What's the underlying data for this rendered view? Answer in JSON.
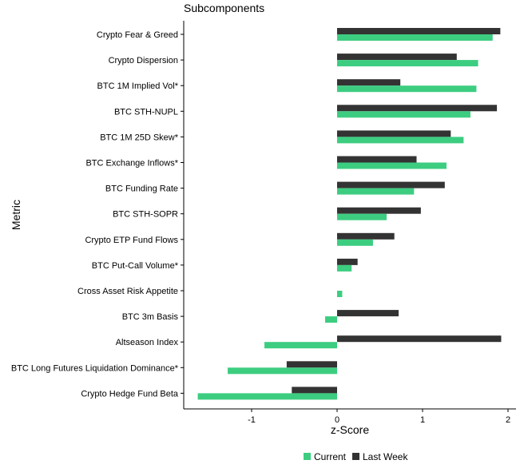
{
  "chart_data": {
    "type": "bar",
    "orientation": "horizontal",
    "title": "Subcomponents",
    "xlabel": "z-Score",
    "ylabel": "Metric",
    "xlim": [
      -1.8,
      2.1
    ],
    "xticks": [
      -1,
      0,
      1,
      2
    ],
    "grid": false,
    "legend_position": "bottom",
    "categories": [
      "Crypto Fear & Greed",
      "Crypto Dispersion",
      "BTC 1M Implied Vol*",
      "BTC STH-NUPL",
      "BTC 1M 25D Skew*",
      "BTC Exchange Inflows*",
      "BTC Funding Rate",
      "BTC STH-SOPR",
      "Crypto ETP Fund Flows",
      "BTC Put-Call Volume*",
      "Cross Asset Risk Appetite",
      "BTC 3m Basis",
      "Altseason Index",
      "BTC Long Futures Liquidation Dominance*",
      "Crypto Hedge Fund Beta"
    ],
    "series": [
      {
        "name": "Last Week",
        "color": "#333333",
        "values": [
          1.91,
          1.4,
          0.74,
          1.87,
          1.33,
          0.93,
          1.26,
          0.98,
          0.67,
          0.24,
          0.0,
          0.72,
          1.92,
          -0.59,
          -0.53
        ]
      },
      {
        "name": "Current",
        "color": "#3dcd80",
        "values": [
          1.82,
          1.65,
          1.63,
          1.56,
          1.48,
          1.28,
          0.9,
          0.58,
          0.42,
          0.17,
          0.06,
          -0.14,
          -0.85,
          -1.28,
          -1.63
        ]
      }
    ]
  }
}
